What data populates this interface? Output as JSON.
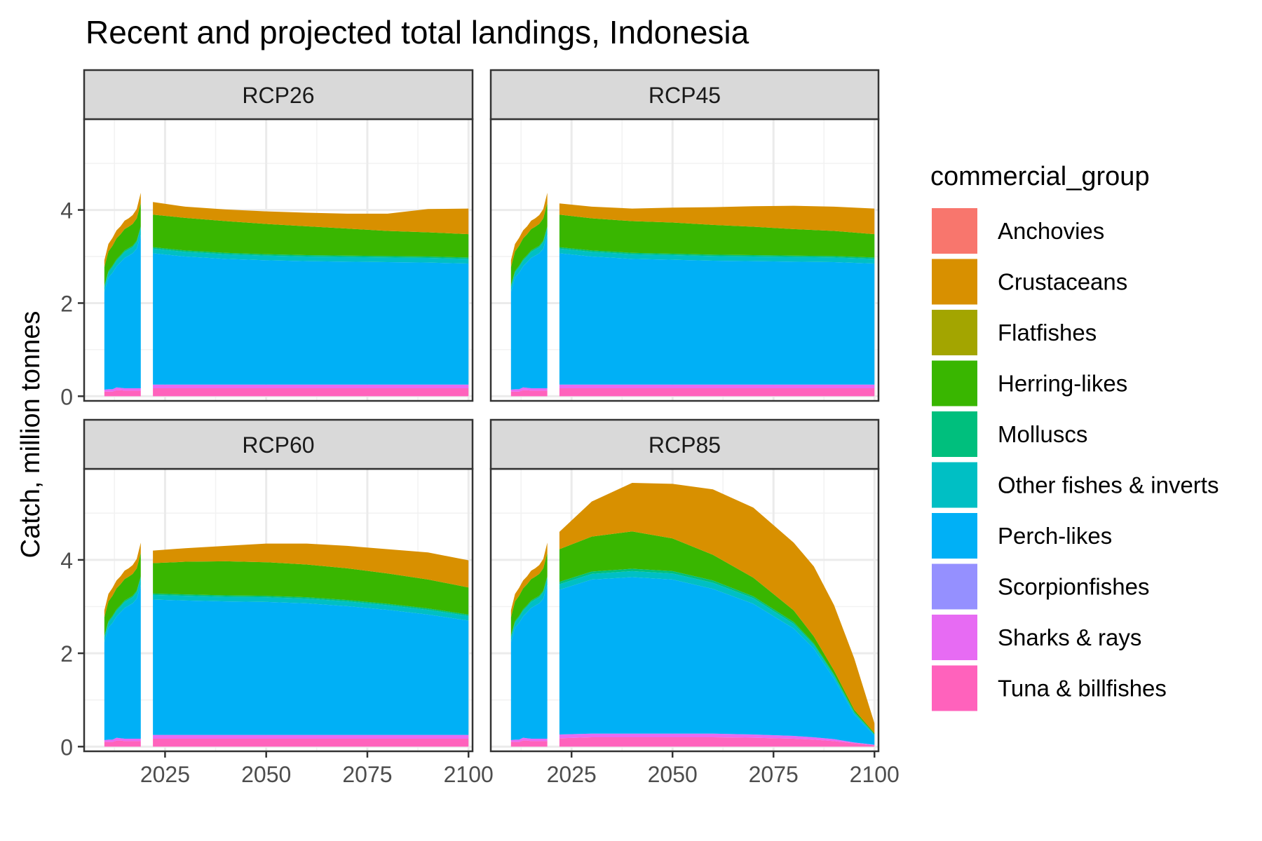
{
  "chart_data": {
    "type": "area",
    "title": "Recent and projected total landings, Indonesia",
    "xlabel": "",
    "ylabel": "Catch, million tonnes",
    "xlim": [
      2005,
      2101
    ],
    "ylim": [
      -0.1,
      5.95
    ],
    "x_ticks": [
      2025,
      2050,
      2075,
      2100
    ],
    "y_ticks": [
      0,
      2,
      4
    ],
    "grid": true,
    "stacked": true,
    "legend": {
      "title": "commercial_group",
      "position": "right"
    },
    "colors": {
      "Anchovies": "#F8766D",
      "Crustaceans": "#D89000",
      "Flatfishes": "#A3A500",
      "Herring-likes": "#39B600",
      "Molluscs": "#00BF7D",
      "Other fishes & inverts": "#00BFC4",
      "Perch-likes": "#00B0F6",
      "Scorpionfishes": "#9590FF",
      "Sharks & rays": "#E76BF3",
      "Tuna & billfishes": "#FF62BC"
    },
    "groups": [
      "Anchovies",
      "Crustaceans",
      "Flatfishes",
      "Herring-likes",
      "Molluscs",
      "Other fishes & inverts",
      "Perch-likes",
      "Scorpionfishes",
      "Sharks & rays",
      "Tuna & billfishes"
    ],
    "panels": [
      {
        "name": "RCP26",
        "recent": {
          "x": [
            2010,
            2011,
            2012,
            2013,
            2014,
            2015,
            2016,
            2017,
            2018,
            2019
          ],
          "values": {
            "Tuna & billfishes": [
              0.1,
              0.1,
              0.1,
              0.13,
              0.13,
              0.12,
              0.12,
              0.12,
              0.12,
              0.12
            ],
            "Sharks & rays": [
              0.04,
              0.05,
              0.05,
              0.06,
              0.05,
              0.05,
              0.05,
              0.05,
              0.05,
              0.05
            ],
            "Perch-likes": [
              2.1,
              2.4,
              2.5,
              2.6,
              2.7,
              2.8,
              2.85,
              2.9,
              3.0,
              3.3
            ],
            "Other fishes & inverts": [
              0.1,
              0.11,
              0.12,
              0.12,
              0.12,
              0.13,
              0.13,
              0.13,
              0.14,
              0.15
            ],
            "Molluscs": [
              0.03,
              0.03,
              0.03,
              0.03,
              0.03,
              0.03,
              0.03,
              0.03,
              0.03,
              0.03
            ],
            "Herring-likes": [
              0.4,
              0.42,
              0.43,
              0.45,
              0.45,
              0.46,
              0.46,
              0.47,
              0.48,
              0.5
            ],
            "Crustaceans": [
              0.15,
              0.16,
              0.17,
              0.17,
              0.17,
              0.18,
              0.18,
              0.19,
              0.2,
              0.22
            ]
          }
        },
        "projected": {
          "x": [
            2022,
            2030,
            2040,
            2050,
            2060,
            2070,
            2080,
            2090,
            2100
          ],
          "values": {
            "Tuna & billfishes": [
              0.17,
              0.17,
              0.17,
              0.17,
              0.17,
              0.17,
              0.17,
              0.17,
              0.17
            ],
            "Sharks & rays": [
              0.08,
              0.08,
              0.08,
              0.08,
              0.08,
              0.08,
              0.08,
              0.08,
              0.08
            ],
            "Perch-likes": [
              2.82,
              2.75,
              2.7,
              2.67,
              2.65,
              2.64,
              2.63,
              2.62,
              2.6
            ],
            "Other fishes & inverts": [
              0.1,
              0.1,
              0.1,
              0.1,
              0.1,
              0.1,
              0.1,
              0.1,
              0.1
            ],
            "Molluscs": [
              0.03,
              0.03,
              0.03,
              0.03,
              0.03,
              0.03,
              0.03,
              0.03,
              0.03
            ],
            "Herring-likes": [
              0.7,
              0.7,
              0.68,
              0.65,
              0.62,
              0.58,
              0.54,
              0.52,
              0.5
            ],
            "Crustaceans": [
              0.27,
              0.24,
              0.25,
              0.27,
              0.29,
              0.32,
              0.37,
              0.5,
              0.55
            ]
          }
        }
      },
      {
        "name": "RCP45",
        "recent": {
          "x": [
            2010,
            2011,
            2012,
            2013,
            2014,
            2015,
            2016,
            2017,
            2018,
            2019
          ],
          "values": {
            "Tuna & billfishes": [
              0.1,
              0.1,
              0.1,
              0.13,
              0.13,
              0.12,
              0.12,
              0.12,
              0.12,
              0.12
            ],
            "Sharks & rays": [
              0.04,
              0.05,
              0.05,
              0.06,
              0.05,
              0.05,
              0.05,
              0.05,
              0.05,
              0.05
            ],
            "Perch-likes": [
              2.1,
              2.4,
              2.5,
              2.6,
              2.7,
              2.8,
              2.85,
              2.9,
              3.0,
              3.3
            ],
            "Other fishes & inverts": [
              0.1,
              0.11,
              0.12,
              0.12,
              0.12,
              0.13,
              0.13,
              0.13,
              0.14,
              0.15
            ],
            "Molluscs": [
              0.03,
              0.03,
              0.03,
              0.03,
              0.03,
              0.03,
              0.03,
              0.03,
              0.03,
              0.03
            ],
            "Herring-likes": [
              0.4,
              0.42,
              0.43,
              0.45,
              0.45,
              0.46,
              0.46,
              0.47,
              0.48,
              0.5
            ],
            "Crustaceans": [
              0.15,
              0.16,
              0.17,
              0.17,
              0.17,
              0.18,
              0.18,
              0.19,
              0.2,
              0.22
            ]
          }
        },
        "projected": {
          "x": [
            2022,
            2030,
            2040,
            2050,
            2060,
            2070,
            2080,
            2090,
            2100
          ],
          "values": {
            "Tuna & billfishes": [
              0.17,
              0.17,
              0.17,
              0.17,
              0.17,
              0.17,
              0.17,
              0.17,
              0.17
            ],
            "Sharks & rays": [
              0.08,
              0.08,
              0.08,
              0.08,
              0.08,
              0.08,
              0.08,
              0.08,
              0.08
            ],
            "Perch-likes": [
              2.82,
              2.75,
              2.7,
              2.68,
              2.66,
              2.65,
              2.64,
              2.63,
              2.6
            ],
            "Other fishes & inverts": [
              0.1,
              0.1,
              0.1,
              0.1,
              0.1,
              0.1,
              0.1,
              0.1,
              0.1
            ],
            "Molluscs": [
              0.03,
              0.03,
              0.03,
              0.03,
              0.03,
              0.03,
              0.03,
              0.03,
              0.03
            ],
            "Herring-likes": [
              0.7,
              0.69,
              0.68,
              0.67,
              0.64,
              0.61,
              0.57,
              0.54,
              0.5
            ],
            "Crustaceans": [
              0.24,
              0.25,
              0.27,
              0.32,
              0.38,
              0.44,
              0.5,
              0.52,
              0.55
            ]
          }
        }
      },
      {
        "name": "RCP60",
        "recent": {
          "x": [
            2010,
            2011,
            2012,
            2013,
            2014,
            2015,
            2016,
            2017,
            2018,
            2019
          ],
          "values": {
            "Tuna & billfishes": [
              0.1,
              0.1,
              0.1,
              0.13,
              0.13,
              0.12,
              0.12,
              0.12,
              0.12,
              0.12
            ],
            "Sharks & rays": [
              0.04,
              0.05,
              0.05,
              0.06,
              0.05,
              0.05,
              0.05,
              0.05,
              0.05,
              0.05
            ],
            "Perch-likes": [
              2.1,
              2.4,
              2.5,
              2.6,
              2.7,
              2.8,
              2.85,
              2.9,
              3.0,
              3.3
            ],
            "Other fishes & inverts": [
              0.1,
              0.11,
              0.12,
              0.12,
              0.12,
              0.13,
              0.13,
              0.13,
              0.14,
              0.15
            ],
            "Molluscs": [
              0.03,
              0.03,
              0.03,
              0.03,
              0.03,
              0.03,
              0.03,
              0.03,
              0.03,
              0.03
            ],
            "Herring-likes": [
              0.4,
              0.42,
              0.43,
              0.45,
              0.45,
              0.46,
              0.46,
              0.47,
              0.48,
              0.5
            ],
            "Crustaceans": [
              0.15,
              0.16,
              0.17,
              0.17,
              0.17,
              0.18,
              0.18,
              0.19,
              0.2,
              0.22
            ]
          }
        },
        "projected": {
          "x": [
            2022,
            2030,
            2040,
            2050,
            2060,
            2070,
            2080,
            2090,
            2100
          ],
          "values": {
            "Tuna & billfishes": [
              0.17,
              0.17,
              0.17,
              0.17,
              0.17,
              0.17,
              0.17,
              0.17,
              0.17
            ],
            "Sharks & rays": [
              0.08,
              0.08,
              0.08,
              0.08,
              0.08,
              0.08,
              0.08,
              0.08,
              0.08
            ],
            "Perch-likes": [
              2.9,
              2.88,
              2.86,
              2.85,
              2.82,
              2.76,
              2.68,
              2.58,
              2.45
            ],
            "Other fishes & inverts": [
              0.1,
              0.1,
              0.1,
              0.1,
              0.1,
              0.1,
              0.1,
              0.1,
              0.1
            ],
            "Molluscs": [
              0.03,
              0.03,
              0.03,
              0.03,
              0.03,
              0.03,
              0.03,
              0.03,
              0.03
            ],
            "Herring-likes": [
              0.65,
              0.7,
              0.73,
              0.72,
              0.7,
              0.68,
              0.65,
              0.62,
              0.58
            ],
            "Crustaceans": [
              0.27,
              0.29,
              0.33,
              0.4,
              0.45,
              0.48,
              0.52,
              0.58,
              0.58
            ]
          }
        }
      },
      {
        "name": "RCP85",
        "recent": {
          "x": [
            2010,
            2011,
            2012,
            2013,
            2014,
            2015,
            2016,
            2017,
            2018,
            2019
          ],
          "values": {
            "Tuna & billfishes": [
              0.1,
              0.1,
              0.1,
              0.13,
              0.13,
              0.12,
              0.12,
              0.12,
              0.12,
              0.12
            ],
            "Sharks & rays": [
              0.04,
              0.05,
              0.05,
              0.06,
              0.05,
              0.05,
              0.05,
              0.05,
              0.05,
              0.05
            ],
            "Perch-likes": [
              2.1,
              2.4,
              2.5,
              2.6,
              2.7,
              2.8,
              2.85,
              2.9,
              3.0,
              3.3
            ],
            "Other fishes & inverts": [
              0.1,
              0.11,
              0.12,
              0.12,
              0.12,
              0.13,
              0.13,
              0.13,
              0.14,
              0.15
            ],
            "Molluscs": [
              0.03,
              0.03,
              0.03,
              0.03,
              0.03,
              0.03,
              0.03,
              0.03,
              0.03,
              0.03
            ],
            "Herring-likes": [
              0.4,
              0.42,
              0.43,
              0.45,
              0.45,
              0.46,
              0.46,
              0.47,
              0.48,
              0.5
            ],
            "Crustaceans": [
              0.15,
              0.16,
              0.17,
              0.17,
              0.17,
              0.18,
              0.18,
              0.19,
              0.2,
              0.22
            ]
          }
        },
        "projected": {
          "x": [
            2022,
            2030,
            2040,
            2050,
            2060,
            2070,
            2080,
            2085,
            2090,
            2095,
            2100
          ],
          "values": {
            "Tuna & billfishes": [
              0.18,
              0.2,
              0.2,
              0.2,
              0.2,
              0.19,
              0.17,
              0.15,
              0.12,
              0.07,
              0.03
            ],
            "Sharks & rays": [
              0.08,
              0.08,
              0.08,
              0.08,
              0.08,
              0.07,
              0.06,
              0.05,
              0.04,
              0.02,
              0.01
            ],
            "Perch-likes": [
              3.1,
              3.3,
              3.35,
              3.3,
              3.1,
              2.8,
              2.3,
              1.9,
              1.3,
              0.6,
              0.2
            ],
            "Other fishes & inverts": [
              0.12,
              0.12,
              0.13,
              0.13,
              0.13,
              0.12,
              0.1,
              0.08,
              0.06,
              0.04,
              0.02
            ],
            "Molluscs": [
              0.05,
              0.05,
              0.05,
              0.05,
              0.05,
              0.04,
              0.04,
              0.03,
              0.03,
              0.02,
              0.01
            ],
            "Herring-likes": [
              0.7,
              0.75,
              0.8,
              0.7,
              0.55,
              0.4,
              0.25,
              0.15,
              0.08,
              0.04,
              0.02
            ],
            "Crustaceans": [
              0.37,
              0.75,
              1.04,
              1.17,
              1.4,
              1.5,
              1.45,
              1.5,
              1.4,
              1.1,
              0.21
            ]
          }
        }
      }
    ]
  }
}
